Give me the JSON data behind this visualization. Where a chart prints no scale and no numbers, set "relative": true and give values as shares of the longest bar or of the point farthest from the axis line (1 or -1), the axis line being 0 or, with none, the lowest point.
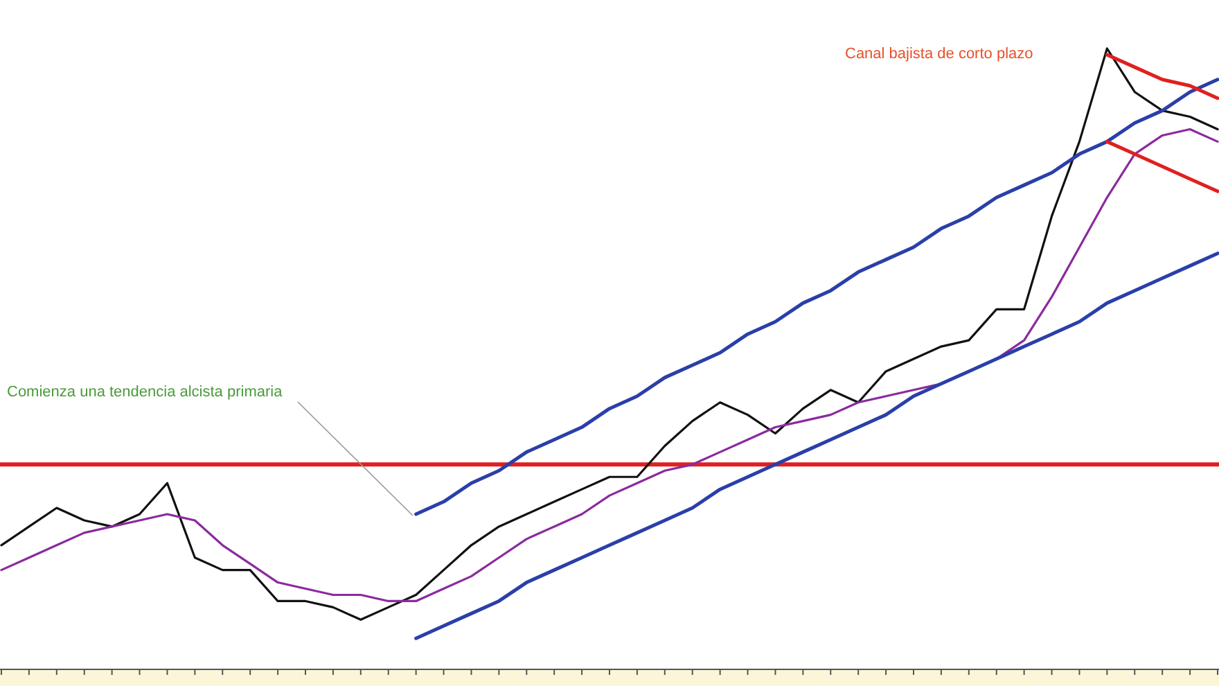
{
  "chart_data": {
    "type": "line",
    "relative": true,
    "categories": [
      null,
      null,
      null,
      null,
      null,
      null,
      null,
      null,
      null,
      null,
      null,
      null,
      null,
      null,
      null,
      null,
      null,
      null,
      null,
      null,
      null,
      null,
      null,
      null,
      null,
      null,
      null,
      null,
      null,
      null,
      null,
      null,
      null,
      null,
      null,
      null,
      null,
      null,
      null,
      null,
      null,
      null,
      null,
      null,
      null
    ],
    "marker": "none",
    "series": [
      {
        "color": "#111111",
        "values": [
          0.2,
          0.23,
          0.26,
          0.24,
          0.23,
          0.25,
          0.3,
          0.18,
          0.16,
          0.16,
          0.11,
          0.11,
          0.1,
          0.08,
          0.1,
          0.12,
          0.16,
          0.2,
          0.23,
          0.25,
          0.27,
          0.29,
          0.31,
          0.31,
          0.36,
          0.4,
          0.43,
          0.41,
          0.38,
          0.42,
          0.45,
          0.43,
          0.48,
          0.5,
          0.52,
          0.53,
          0.58,
          0.58,
          0.73,
          0.85,
          1,
          0.93,
          0.9,
          0.89,
          0.87
        ]
      },
      {
        "color": "#8b2a9e",
        "values": [
          0.16,
          0.18,
          0.2,
          0.22,
          0.23,
          0.24,
          0.25,
          0.24,
          0.2,
          0.17,
          0.14,
          0.13,
          0.12,
          0.12,
          0.11,
          0.11,
          0.13,
          0.15,
          0.18,
          0.21,
          0.23,
          0.25,
          0.28,
          0.3,
          0.32,
          0.33,
          0.35,
          0.37,
          0.39,
          0.4,
          0.41,
          0.43,
          0.44,
          0.45,
          0.46,
          0.48,
          0.5,
          0.53,
          0.6,
          0.68,
          0.76,
          0.83,
          0.86,
          0.87,
          0.85
        ]
      },
      {
        "color": "#2a3fa8",
        "values": [
          null,
          null,
          null,
          null,
          null,
          null,
          null,
          null,
          null,
          null,
          null,
          null,
          null,
          null,
          null,
          0.25,
          0.27,
          0.3,
          0.32,
          0.35,
          0.37,
          0.39,
          0.42,
          0.44,
          0.47,
          0.49,
          0.51,
          0.54,
          0.56,
          0.59,
          0.61,
          0.64,
          0.66,
          0.68,
          0.71,
          0.73,
          0.76,
          0.78,
          0.8,
          0.83,
          0.85,
          0.88,
          0.9,
          0.93,
          0.95
        ]
      },
      {
        "color": "#2a3fa8",
        "values": [
          null,
          null,
          null,
          null,
          null,
          null,
          null,
          null,
          null,
          null,
          null,
          null,
          null,
          null,
          null,
          0.05,
          0.07,
          0.09,
          0.11,
          0.14,
          0.16,
          0.18,
          0.2,
          0.22,
          0.24,
          0.26,
          0.29,
          0.31,
          0.33,
          0.35,
          0.37,
          0.39,
          0.41,
          0.44,
          0.46,
          0.48,
          0.5,
          0.52,
          0.54,
          0.56,
          0.59,
          0.61,
          0.63,
          0.65,
          0.67
        ]
      },
      {
        "color": "#e02020",
        "values": [
          null,
          null,
          null,
          null,
          null,
          null,
          null,
          null,
          null,
          null,
          null,
          null,
          null,
          null,
          null,
          null,
          null,
          null,
          null,
          null,
          null,
          null,
          null,
          null,
          null,
          null,
          null,
          null,
          null,
          null,
          null,
          null,
          null,
          null,
          null,
          null,
          null,
          null,
          null,
          null,
          0.99,
          0.97,
          0.95,
          0.94,
          0.92
        ]
      },
      {
        "color": "#e02020",
        "values": [
          null,
          null,
          null,
          null,
          null,
          null,
          null,
          null,
          null,
          null,
          null,
          null,
          null,
          null,
          null,
          null,
          null,
          null,
          null,
          null,
          null,
          null,
          null,
          null,
          null,
          null,
          null,
          null,
          null,
          null,
          null,
          null,
          null,
          null,
          null,
          null,
          null,
          null,
          null,
          null,
          0.85,
          0.83,
          0.81,
          0.79,
          0.77
        ]
      }
    ],
    "ref_lines": [
      {
        "axis": "y",
        "value": 0.33,
        "color": "#e02020"
      }
    ],
    "annotations": [
      "Comienza una tendencia alcista primaria",
      "Canal bajista de corto plazo"
    ]
  }
}
